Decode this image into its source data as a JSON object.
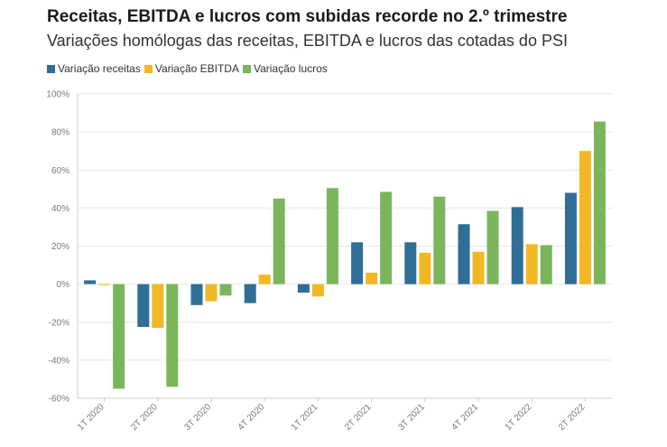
{
  "chart_data": {
    "type": "bar",
    "title": "Receitas, EBITDA e lucros com subidas recorde no 2.º trimestre",
    "subtitle": "Variações homólogas das receitas, EBITDA e lucros das cotadas do PSI",
    "categories": [
      "1T 2020",
      "2T 2020",
      "3T 2020",
      "4T 2020",
      "1T 2021",
      "2T 2021",
      "3T 2021",
      "4T 2021",
      "1T 2022",
      "2T 2022"
    ],
    "series": [
      {
        "name": "Variação receitas",
        "color": "#2f6e96",
        "values": [
          2,
          -22.5,
          -11,
          -10,
          -4.5,
          22,
          22,
          31.5,
          40.5,
          48
        ]
      },
      {
        "name": "Variação EBITDA",
        "color": "#f2b824",
        "values": [
          -0.5,
          -23,
          -9,
          5,
          -6.5,
          6,
          16.5,
          17,
          21,
          70
        ]
      },
      {
        "name": "Variação lucros",
        "color": "#7ab55c",
        "values": [
          -55,
          -54,
          -6,
          45,
          50.5,
          48.5,
          46,
          38.5,
          20.5,
          85.5
        ]
      }
    ],
    "yticks": [
      "100%",
      "80%",
      "60%",
      "40%",
      "20%",
      "0%",
      "-20%",
      "-40%",
      "-60%"
    ],
    "ylim": [
      -60,
      100
    ],
    "grid": true,
    "legend": "top-left"
  }
}
